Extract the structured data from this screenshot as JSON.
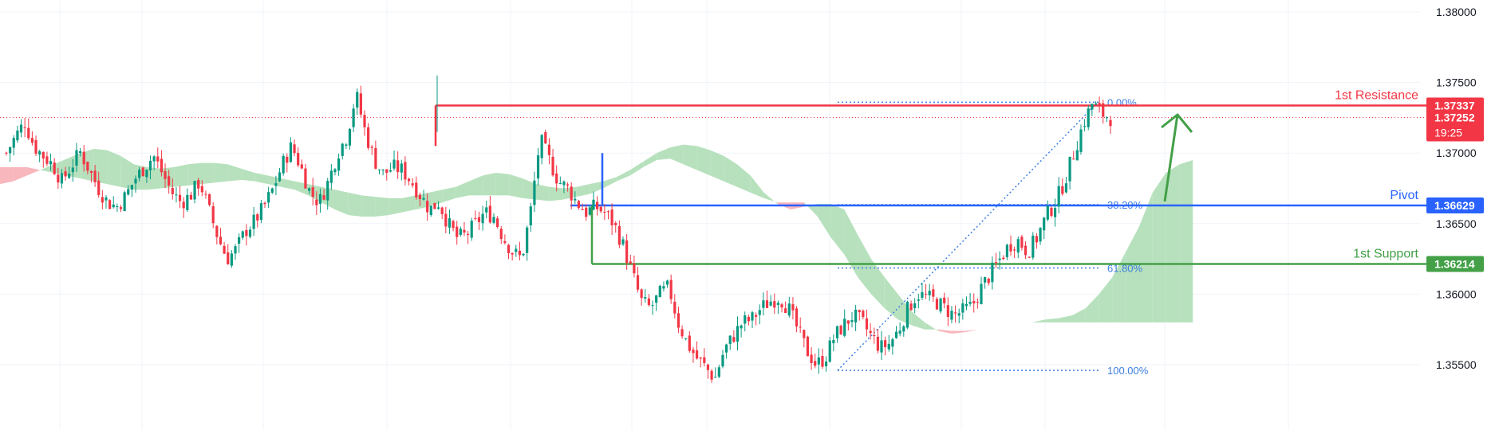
{
  "chart_data": {
    "type": "candlestick",
    "y_axis": {
      "range": [
        1.3532,
        1.3812
      ],
      "ticks": [
        "1.38000",
        "1.37500",
        "1.37000",
        "1.36500",
        "1.36000",
        "1.35500"
      ]
    },
    "current_price": {
      "value": "1.37252",
      "countdown": "19:25",
      "color": "#f23645"
    },
    "levels": [
      {
        "name": "1st Resistance",
        "value": "1.37337",
        "color": "#f23645"
      },
      {
        "name": "Pivot",
        "value": "1.36629",
        "color": "#2962ff"
      },
      {
        "name": "1st Support",
        "value": "1.36214",
        "color": "#43a047"
      }
    ],
    "fibonacci": {
      "high": 1.3736,
      "low": 1.3546,
      "levels": [
        {
          "label": "0.00%",
          "ratio": 0
        },
        {
          "label": "38.20%",
          "ratio": 0.382
        },
        {
          "label": "61.80%",
          "ratio": 0.618
        },
        {
          "label": "100.00%",
          "ratio": 1
        }
      ],
      "color": "#3f7fe0"
    },
    "colors": {
      "bull": "#089981",
      "bear": "#f23645",
      "cloud_bull": "#b7e1bd",
      "cloud_bear": "#f8b6bd",
      "arrow": "#43a047",
      "grid": "#f0f3fa"
    },
    "price_path": [
      1.37,
      1.3712,
      1.3722,
      1.3705,
      1.3698,
      1.3692,
      1.368,
      1.369,
      1.3701,
      1.3688,
      1.3675,
      1.3665,
      1.3662,
      1.367,
      1.3682,
      1.369,
      1.3698,
      1.3685,
      1.3672,
      1.3665,
      1.367,
      1.368,
      1.366,
      1.364,
      1.3625,
      1.3632,
      1.3645,
      1.3652,
      1.3662,
      1.3675,
      1.3692,
      1.3705,
      1.369,
      1.3672,
      1.3665,
      1.368,
      1.37,
      1.3712,
      1.3742,
      1.3715,
      1.3695,
      1.3685,
      1.369,
      1.3688,
      1.368,
      1.367,
      1.366,
      1.3665,
      1.365,
      1.364,
      1.3642,
      1.365,
      1.3658,
      1.3655,
      1.364,
      1.363,
      1.3625,
      1.366,
      1.371,
      1.3695,
      1.368,
      1.3675,
      1.3665,
      1.3658,
      1.3662,
      1.3658,
      1.365,
      1.3635,
      1.3615,
      1.3595,
      1.359,
      1.36,
      1.3605,
      1.358,
      1.3565,
      1.3555,
      1.3548,
      1.354,
      1.356,
      1.357,
      1.358,
      1.3582,
      1.359,
      1.3595,
      1.3598,
      1.359,
      1.3575,
      1.356,
      1.355,
      1.3555,
      1.357,
      1.3578,
      1.3585,
      1.358,
      1.357,
      1.3562,
      1.3565,
      1.3575,
      1.359,
      1.36,
      1.3598,
      1.3595,
      1.359,
      1.3585,
      1.3588,
      1.3592,
      1.3605,
      1.3615,
      1.3625,
      1.3635,
      1.3638,
      1.363,
      1.364,
      1.3655,
      1.3665,
      1.368,
      1.37,
      1.372,
      1.3735,
      1.3728,
      1.3725
    ],
    "ichimoku_cloud": {
      "x_start": 0,
      "x_step": 4,
      "span_a": [
        1.3678,
        1.368,
        1.3684,
        1.3688,
        1.3692,
        1.3696,
        1.37,
        1.3703,
        1.3702,
        1.3698,
        1.3692,
        1.369,
        1.3689,
        1.369,
        1.3692,
        1.3693,
        1.3693,
        1.3692,
        1.3689,
        1.3686,
        1.3684,
        1.3682,
        1.368,
        1.3678,
        1.3676,
        1.3674,
        1.3672,
        1.367,
        1.3669,
        1.3668,
        1.3668,
        1.367,
        1.3672,
        1.3674,
        1.3676,
        1.368,
        1.3684,
        1.3686,
        1.3685,
        1.3682,
        1.3678,
        1.3676,
        1.3675,
        1.3676,
        1.3678,
        1.368,
        1.3683,
        1.3688,
        1.3694,
        1.37,
        1.3704,
        1.3706,
        1.3705,
        1.3702,
        1.3698,
        1.3692,
        1.3684,
        1.3672,
        1.3664,
        1.366,
        1.3662,
        1.3664,
        1.3664,
        1.366,
        1.3642,
        1.3625,
        1.3612,
        1.36,
        1.3588,
        1.358,
        1.3574,
        1.3572,
        1.3573,
        1.3575,
        1.3576,
        1.3576,
        1.3578,
        1.358,
        1.3582,
        1.3583,
        1.3585,
        1.359,
        1.36,
        1.3612,
        1.363,
        1.3648,
        1.3672,
        1.3686,
        1.3692,
        1.3695
      ],
      "span_b": [
        1.369,
        1.369,
        1.369,
        1.3688,
        1.3686,
        1.3684,
        1.3682,
        1.368,
        1.3678,
        1.3676,
        1.3674,
        1.3674,
        1.3675,
        1.3676,
        1.3677,
        1.3678,
        1.3679,
        1.368,
        1.3681,
        1.368,
        1.3678,
        1.3676,
        1.3674,
        1.367,
        1.3665,
        1.366,
        1.3656,
        1.3655,
        1.3655,
        1.3656,
        1.3658,
        1.366,
        1.3662,
        1.3665,
        1.3668,
        1.367,
        1.367,
        1.367,
        1.367,
        1.3668,
        1.3667,
        1.3666,
        1.3667,
        1.3669,
        1.3671,
        1.3675,
        1.368,
        1.3684,
        1.369,
        1.3695,
        1.3696,
        1.3692,
        1.3688,
        1.3684,
        1.368,
        1.3676,
        1.3672,
        1.3668,
        1.3665,
        1.3665,
        1.3665,
        1.3655,
        1.364,
        1.3628,
        1.3612,
        1.36,
        1.359,
        1.3582,
        1.3578,
        1.3575,
        1.3575,
        1.3574,
        1.3574,
        1.3575,
        1.3576,
        1.3576,
        1.3578,
        1.358,
        1.358,
        1.358,
        1.358,
        1.358,
        1.358,
        1.358,
        1.358,
        1.358,
        1.358,
        1.358,
        1.358,
        1.358
      ]
    }
  }
}
